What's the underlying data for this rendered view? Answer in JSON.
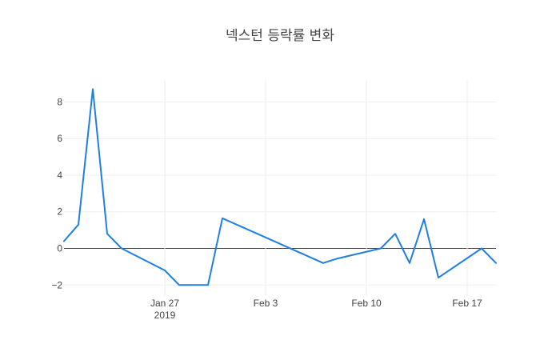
{
  "chart_data": {
    "type": "line",
    "title": "넥스턴 등락률 변화",
    "xlabel": "",
    "ylabel": "",
    "x_axis": {
      "type": "date",
      "range": [
        "2019-01-20",
        "2019-02-19"
      ],
      "ticks": [
        {
          "date": "2019-01-27",
          "label": "Jan 27",
          "sublabel": "2019"
        },
        {
          "date": "2019-02-03",
          "label": "Feb 3"
        },
        {
          "date": "2019-02-10",
          "label": "Feb 10"
        },
        {
          "date": "2019-02-17",
          "label": "Feb 17"
        }
      ]
    },
    "y_axis": {
      "range": [
        -2.6,
        9.2
      ],
      "ticks": [
        -2,
        0,
        2,
        4,
        6,
        8
      ],
      "tick_labels": [
        "−2",
        "0",
        "2",
        "4",
        "6",
        "8"
      ]
    },
    "grid": true,
    "zeroline": true,
    "series": [
      {
        "color": "#1f7fe0",
        "x": [
          "2019-01-20",
          "2019-01-21",
          "2019-01-22",
          "2019-01-23",
          "2019-01-24",
          "2019-01-27",
          "2019-01-28",
          "2019-01-29",
          "2019-01-30",
          "2019-01-31",
          "2019-02-01",
          "2019-02-02",
          "2019-02-03",
          "2019-02-04",
          "2019-02-05",
          "2019-02-06",
          "2019-02-07",
          "2019-02-08",
          "2019-02-11",
          "2019-02-12",
          "2019-02-13",
          "2019-02-14",
          "2019-02-15",
          "2019-02-18",
          "2019-02-19"
        ],
        "y": [
          0.4,
          1.3,
          8.7,
          0.8,
          0.0,
          -1.2,
          -2.0,
          -2.0,
          -2.0,
          1.65,
          1.3,
          0.95,
          0.6,
          0.25,
          -0.1,
          -0.45,
          -0.8,
          -0.55,
          0.0,
          0.8,
          -0.8,
          1.6,
          -1.6,
          0.0,
          -0.8
        ]
      }
    ]
  }
}
